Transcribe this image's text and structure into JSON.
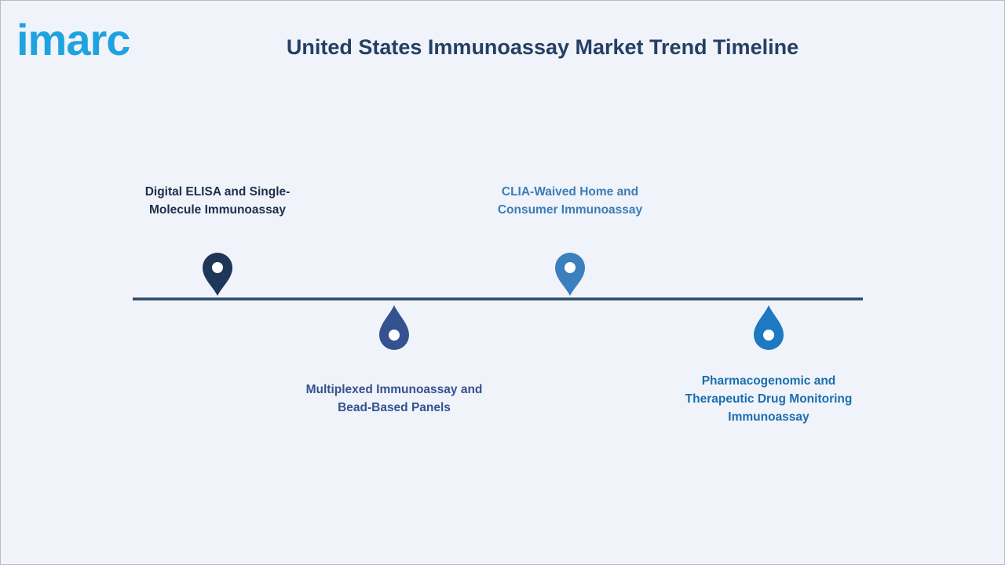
{
  "header": {
    "logo": "imarc",
    "title": "United States Immunoassay Market Trend Timeline"
  },
  "timeline": {
    "items": [
      {
        "label": "Digital ELISA and Single-Molecule Immunoassay"
      },
      {
        "label": "Multiplexed Immunoassay and Bead-Based Panels"
      },
      {
        "label": "CLIA-Waived Home and Consumer Immunoassay"
      },
      {
        "label": "Pharmacogenomic and Therapeutic Drug Monitoring Immunoassay"
      }
    ]
  }
}
